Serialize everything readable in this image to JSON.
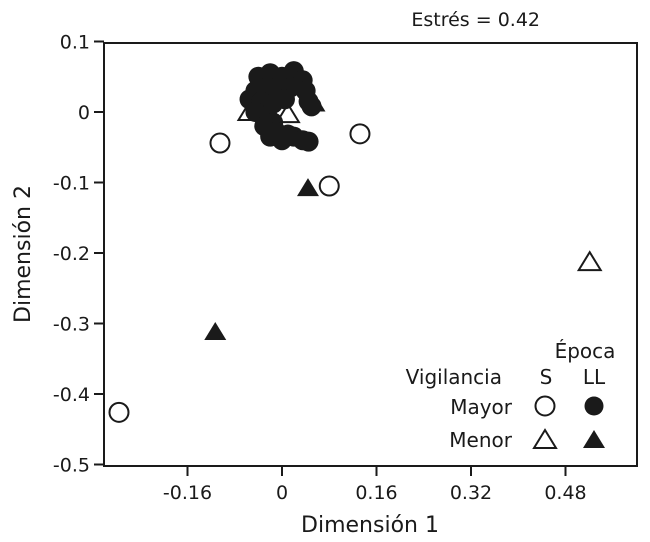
{
  "chart_data": {
    "type": "scatter",
    "title": "",
    "annotation": "Estrés = 0.42",
    "xlabel": "Dimensión 1",
    "ylabel": "Dimensión 2",
    "xlim": [
      -0.3,
      0.65
    ],
    "ylim": [
      -0.5,
      0.1
    ],
    "xticks": [
      -0.16,
      0,
      0.16,
      0.32,
      0.48
    ],
    "xtick_labels": [
      "-0.16",
      "0",
      "0.16",
      "0.32",
      "0.48"
    ],
    "yticks": [
      0.1,
      0,
      -0.1,
      -0.2,
      -0.3,
      -0.4,
      -0.5
    ],
    "ytick_labels": [
      "0.1",
      "0",
      "-0.1",
      "-0.2",
      "-0.3",
      "-0.4",
      "-0.5"
    ],
    "grid": false,
    "legend": {
      "position": "lower right",
      "title_col": "Época",
      "title_row": "Vigilancia",
      "columns": [
        "S",
        "LL"
      ],
      "rows": [
        "Mayor",
        "Menor"
      ]
    },
    "series": [
      {
        "name": "Mayor - S",
        "marker": "open-circle",
        "points": [
          [
            -0.105,
            -0.044
          ],
          [
            0.132,
            -0.031
          ],
          [
            0.08,
            -0.105
          ],
          [
            -0.276,
            -0.426
          ]
        ]
      },
      {
        "name": "Mayor - LL",
        "marker": "filled-circle",
        "points": [
          [
            -0.04,
            0.05
          ],
          [
            -0.02,
            0.055
          ],
          [
            0.0,
            0.05
          ],
          [
            0.02,
            0.058
          ],
          [
            0.035,
            0.045
          ],
          [
            -0.045,
            0.03
          ],
          [
            -0.025,
            0.035
          ],
          [
            -0.005,
            0.03
          ],
          [
            0.015,
            0.035
          ],
          [
            0.04,
            0.03
          ],
          [
            -0.055,
            0.018
          ],
          [
            -0.035,
            0.015
          ],
          [
            -0.015,
            0.012
          ],
          [
            0.005,
            0.018
          ],
          [
            0.045,
            0.015
          ],
          [
            -0.045,
            0.0
          ],
          [
            -0.025,
            -0.005
          ],
          [
            0.05,
            0.008
          ],
          [
            -0.03,
            -0.02
          ],
          [
            -0.015,
            -0.015
          ],
          [
            -0.02,
            -0.035
          ],
          [
            0.0,
            -0.04
          ],
          [
            0.02,
            -0.035
          ],
          [
            0.035,
            -0.04
          ],
          [
            0.045,
            -0.042
          ],
          [
            -0.01,
            -0.028
          ],
          [
            0.01,
            -0.032
          ]
        ]
      },
      {
        "name": "Menor - S",
        "marker": "open-triangle",
        "points": [
          [
            -0.055,
            0.0
          ],
          [
            0.01,
            -0.003
          ],
          [
            0.521,
            -0.213
          ]
        ]
      },
      {
        "name": "Menor - LL",
        "marker": "filled-triangle",
        "points": [
          [
            0.055,
            0.012
          ],
          [
            0.044,
            -0.108
          ],
          [
            -0.113,
            -0.312
          ]
        ]
      }
    ]
  }
}
